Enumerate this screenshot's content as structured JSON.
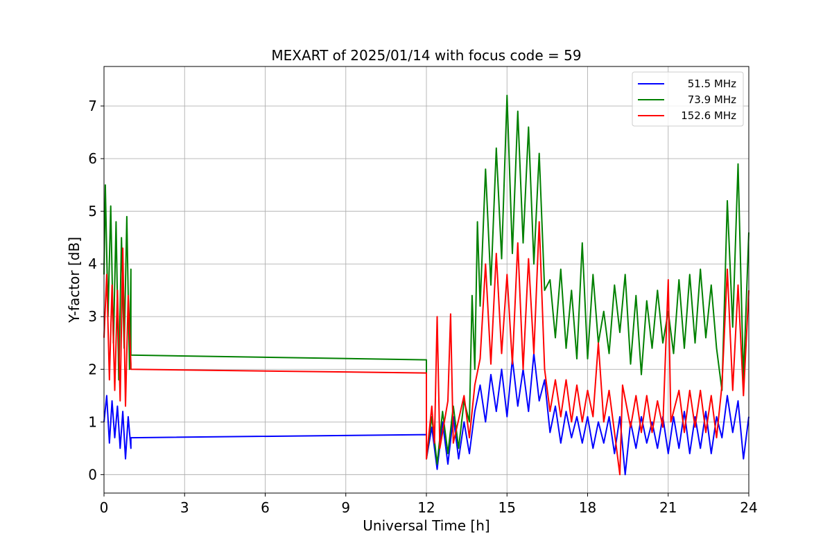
{
  "chart_data": {
    "type": "line",
    "title": "MEXART of 2025/01/14 with focus code = 59",
    "xlabel": "Universal Time [h]",
    "ylabel": "Y-factor [dB]",
    "xlim": [
      0,
      24
    ],
    "ylim": [
      -0.35,
      7.75
    ],
    "xticks": [
      0,
      3,
      6,
      9,
      12,
      15,
      18,
      21,
      24
    ],
    "yticks": [
      0,
      1,
      2,
      3,
      4,
      5,
      6,
      7
    ],
    "grid": true,
    "legend_position": "top-right",
    "series": [
      {
        "name": "51.5 MHz",
        "color": "#0000ff",
        "points": [
          [
            0.0,
            1.0
          ],
          [
            0.1,
            1.5
          ],
          [
            0.2,
            0.6
          ],
          [
            0.3,
            1.4
          ],
          [
            0.4,
            0.7
          ],
          [
            0.5,
            1.3
          ],
          [
            0.6,
            0.5
          ],
          [
            0.7,
            1.2
          ],
          [
            0.8,
            0.3
          ],
          [
            0.9,
            1.1
          ],
          [
            1.0,
            0.5
          ],
          [
            1.0,
            0.7
          ],
          [
            12.0,
            0.76
          ],
          [
            12.0,
            0.3
          ],
          [
            12.2,
            0.9
          ],
          [
            12.4,
            0.1
          ],
          [
            12.6,
            1.0
          ],
          [
            12.8,
            0.2
          ],
          [
            13.0,
            1.1
          ],
          [
            13.2,
            0.3
          ],
          [
            13.4,
            1.0
          ],
          [
            13.6,
            0.4
          ],
          [
            13.8,
            1.2
          ],
          [
            14.0,
            1.7
          ],
          [
            14.2,
            1.0
          ],
          [
            14.4,
            1.9
          ],
          [
            14.6,
            1.2
          ],
          [
            14.8,
            2.0
          ],
          [
            15.0,
            1.1
          ],
          [
            15.2,
            2.2
          ],
          [
            15.4,
            1.3
          ],
          [
            15.6,
            2.0
          ],
          [
            15.8,
            1.2
          ],
          [
            16.0,
            2.3
          ],
          [
            16.2,
            1.4
          ],
          [
            16.4,
            1.8
          ],
          [
            16.6,
            0.8
          ],
          [
            16.8,
            1.3
          ],
          [
            17.0,
            0.6
          ],
          [
            17.2,
            1.2
          ],
          [
            17.4,
            0.7
          ],
          [
            17.6,
            1.1
          ],
          [
            17.8,
            0.6
          ],
          [
            18.0,
            1.1
          ],
          [
            18.2,
            0.5
          ],
          [
            18.4,
            1.0
          ],
          [
            18.6,
            0.6
          ],
          [
            18.8,
            1.1
          ],
          [
            19.0,
            0.4
          ],
          [
            19.2,
            1.1
          ],
          [
            19.4,
            0.0
          ],
          [
            19.6,
            1.0
          ],
          [
            19.8,
            0.5
          ],
          [
            20.0,
            1.1
          ],
          [
            20.2,
            0.6
          ],
          [
            20.4,
            1.0
          ],
          [
            20.6,
            0.5
          ],
          [
            20.8,
            1.1
          ],
          [
            21.0,
            0.4
          ],
          [
            21.2,
            1.1
          ],
          [
            21.4,
            0.5
          ],
          [
            21.6,
            1.2
          ],
          [
            21.8,
            0.4
          ],
          [
            22.0,
            1.1
          ],
          [
            22.2,
            0.5
          ],
          [
            22.4,
            1.2
          ],
          [
            22.6,
            0.4
          ],
          [
            22.8,
            1.1
          ],
          [
            23.0,
            0.7
          ],
          [
            23.2,
            1.5
          ],
          [
            23.4,
            0.8
          ],
          [
            23.6,
            1.4
          ],
          [
            23.8,
            0.3
          ],
          [
            24.0,
            1.1
          ]
        ]
      },
      {
        "name": "73.9 MHz",
        "color": "#008000",
        "points": [
          [
            0.0,
            3.8
          ],
          [
            0.05,
            5.5
          ],
          [
            0.15,
            3.0
          ],
          [
            0.25,
            5.1
          ],
          [
            0.35,
            2.5
          ],
          [
            0.45,
            4.8
          ],
          [
            0.55,
            1.8
          ],
          [
            0.65,
            4.5
          ],
          [
            0.75,
            2.4
          ],
          [
            0.85,
            4.9
          ],
          [
            0.95,
            2.0
          ],
          [
            1.0,
            3.9
          ],
          [
            1.0,
            2.27
          ],
          [
            12.0,
            2.18
          ],
          [
            12.0,
            0.3
          ],
          [
            12.2,
            1.1
          ],
          [
            12.4,
            0.2
          ],
          [
            12.6,
            1.2
          ],
          [
            12.8,
            0.4
          ],
          [
            13.0,
            1.3
          ],
          [
            13.2,
            0.5
          ],
          [
            13.4,
            1.4
          ],
          [
            13.6,
            1.0
          ],
          [
            13.7,
            3.4
          ],
          [
            13.8,
            2.0
          ],
          [
            13.9,
            4.8
          ],
          [
            14.0,
            3.2
          ],
          [
            14.2,
            5.8
          ],
          [
            14.4,
            3.6
          ],
          [
            14.6,
            6.2
          ],
          [
            14.8,
            4.1
          ],
          [
            15.0,
            7.2
          ],
          [
            15.2,
            4.2
          ],
          [
            15.4,
            6.9
          ],
          [
            15.6,
            4.4
          ],
          [
            15.8,
            6.6
          ],
          [
            16.0,
            4.0
          ],
          [
            16.2,
            6.1
          ],
          [
            16.4,
            3.5
          ],
          [
            16.6,
            3.7
          ],
          [
            16.8,
            2.6
          ],
          [
            17.0,
            3.9
          ],
          [
            17.2,
            2.4
          ],
          [
            17.4,
            3.5
          ],
          [
            17.6,
            2.2
          ],
          [
            17.8,
            4.4
          ],
          [
            18.0,
            2.2
          ],
          [
            18.2,
            3.8
          ],
          [
            18.4,
            2.5
          ],
          [
            18.6,
            3.1
          ],
          [
            18.8,
            2.3
          ],
          [
            19.0,
            3.6
          ],
          [
            19.2,
            2.7
          ],
          [
            19.4,
            3.8
          ],
          [
            19.6,
            2.1
          ],
          [
            19.8,
            3.4
          ],
          [
            20.0,
            1.9
          ],
          [
            20.2,
            3.3
          ],
          [
            20.4,
            2.4
          ],
          [
            20.6,
            3.5
          ],
          [
            20.8,
            2.5
          ],
          [
            21.0,
            3.1
          ],
          [
            21.2,
            2.3
          ],
          [
            21.4,
            3.7
          ],
          [
            21.6,
            2.4
          ],
          [
            21.8,
            3.8
          ],
          [
            22.0,
            2.5
          ],
          [
            22.2,
            3.9
          ],
          [
            22.4,
            2.6
          ],
          [
            22.6,
            3.6
          ],
          [
            22.8,
            2.4
          ],
          [
            23.0,
            1.6
          ],
          [
            23.2,
            5.2
          ],
          [
            23.4,
            2.8
          ],
          [
            23.6,
            5.9
          ],
          [
            23.8,
            1.8
          ],
          [
            24.0,
            4.6
          ]
        ]
      },
      {
        "name": "152.6 MHz",
        "color": "#ff0000",
        "points": [
          [
            0.0,
            2.6
          ],
          [
            0.1,
            3.8
          ],
          [
            0.2,
            1.8
          ],
          [
            0.3,
            3.6
          ],
          [
            0.4,
            1.6
          ],
          [
            0.5,
            3.5
          ],
          [
            0.6,
            1.4
          ],
          [
            0.7,
            4.3
          ],
          [
            0.8,
            1.3
          ],
          [
            0.9,
            3.4
          ],
          [
            1.0,
            2.1
          ],
          [
            1.0,
            2.0
          ],
          [
            12.0,
            1.93
          ],
          [
            12.0,
            0.3
          ],
          [
            12.2,
            1.3
          ],
          [
            12.3,
            0.6
          ],
          [
            12.4,
            3.0
          ],
          [
            12.5,
            0.5
          ],
          [
            12.8,
            1.4
          ],
          [
            12.9,
            3.05
          ],
          [
            13.0,
            0.6
          ],
          [
            13.4,
            1.5
          ],
          [
            13.6,
            0.7
          ],
          [
            13.8,
            1.7
          ],
          [
            14.0,
            2.2
          ],
          [
            14.2,
            4.0
          ],
          [
            14.4,
            2.1
          ],
          [
            14.6,
            4.2
          ],
          [
            14.8,
            2.3
          ],
          [
            15.0,
            3.8
          ],
          [
            15.2,
            2.1
          ],
          [
            15.4,
            4.4
          ],
          [
            15.6,
            2.0
          ],
          [
            15.8,
            4.1
          ],
          [
            16.0,
            2.3
          ],
          [
            16.2,
            4.8
          ],
          [
            16.4,
            2.0
          ],
          [
            16.6,
            1.2
          ],
          [
            16.8,
            1.8
          ],
          [
            17.0,
            1.1
          ],
          [
            17.2,
            1.8
          ],
          [
            17.4,
            1.0
          ],
          [
            17.6,
            1.7
          ],
          [
            17.8,
            1.0
          ],
          [
            18.0,
            1.6
          ],
          [
            18.2,
            1.1
          ],
          [
            18.4,
            2.5
          ],
          [
            18.6,
            1.0
          ],
          [
            18.8,
            1.6
          ],
          [
            19.0,
            0.8
          ],
          [
            19.2,
            0.0
          ],
          [
            19.3,
            1.7
          ],
          [
            19.6,
            0.9
          ],
          [
            19.8,
            1.5
          ],
          [
            20.0,
            0.8
          ],
          [
            20.2,
            1.5
          ],
          [
            20.4,
            0.8
          ],
          [
            20.6,
            1.4
          ],
          [
            20.8,
            0.9
          ],
          [
            21.0,
            3.7
          ],
          [
            21.1,
            1.0
          ],
          [
            21.4,
            1.6
          ],
          [
            21.6,
            0.8
          ],
          [
            21.8,
            1.6
          ],
          [
            22.0,
            0.9
          ],
          [
            22.2,
            1.6
          ],
          [
            22.4,
            0.8
          ],
          [
            22.6,
            1.5
          ],
          [
            22.8,
            0.7
          ],
          [
            23.0,
            1.7
          ],
          [
            23.2,
            3.9
          ],
          [
            23.4,
            1.6
          ],
          [
            23.6,
            3.6
          ],
          [
            23.8,
            1.5
          ],
          [
            24.0,
            3.5
          ]
        ]
      }
    ]
  }
}
